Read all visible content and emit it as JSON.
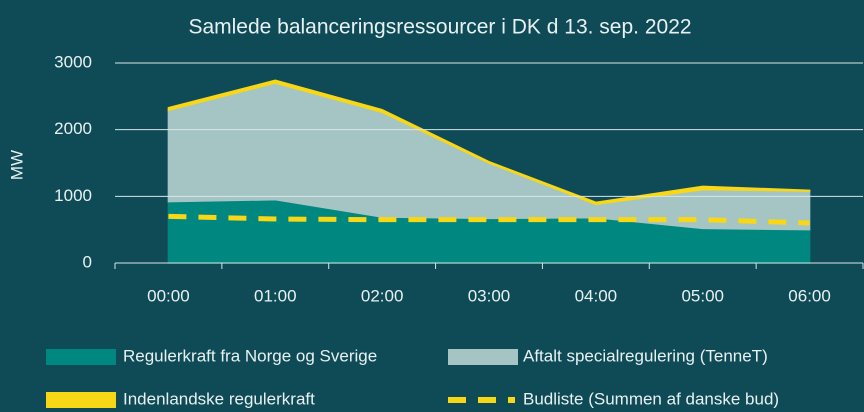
{
  "chart_data": {
    "type": "area",
    "title": "Samlede balanceringsressourcer i DK d 13. sep. 2022",
    "y_label": "MW",
    "categories": [
      "00:00",
      "01:00",
      "02:00",
      "03:00",
      "04:00",
      "05:00",
      "06:00"
    ],
    "series": [
      {
        "name": "Regulerkraft fra Norge og Sverige",
        "color": "#00877f",
        "values": [
          920,
          950,
          690,
          670,
          680,
          520,
          500
        ]
      },
      {
        "name": "Aftalt specialregulering (TenneT)",
        "color": "#a4c5c3",
        "values": [
          1370,
          1750,
          1570,
          830,
          200,
          580,
          580
        ]
      },
      {
        "name": "Indenlandske regulerkraft",
        "color": "#f7d716",
        "values": [
          40,
          40,
          40,
          20,
          30,
          50,
          10
        ]
      },
      {
        "name": "Budliste (Summen af danske bud)",
        "color": "#f7d716",
        "type": "line",
        "dashed": true,
        "values": [
          700,
          660,
          650,
          650,
          650,
          650,
          600
        ]
      }
    ],
    "ylim": [
      0,
      3000
    ],
    "yticks": [
      0,
      1000,
      2000,
      3000
    ],
    "grid": true,
    "legend": "bottom"
  }
}
